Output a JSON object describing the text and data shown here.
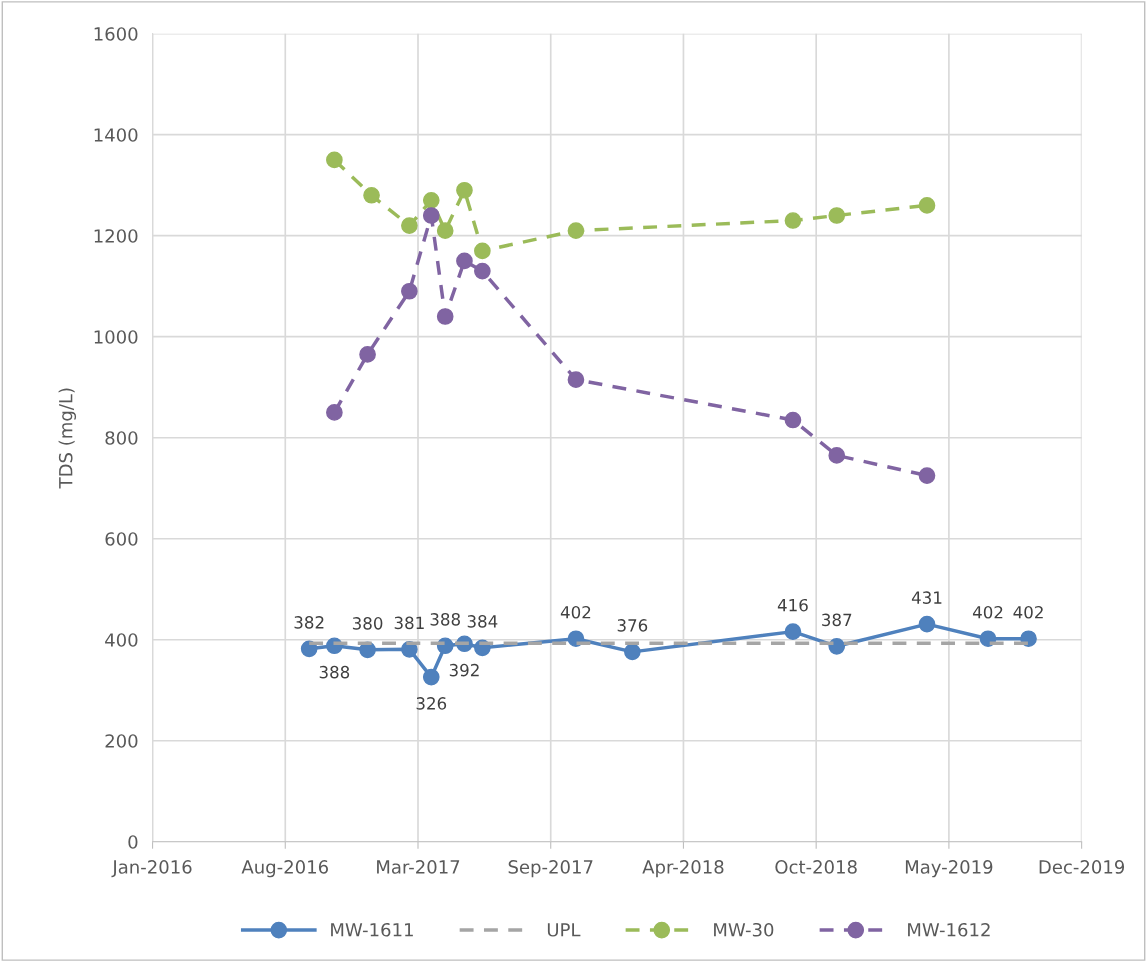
{
  "chart_data": {
    "type": "line",
    "ylabel": "TDS (mg/L)",
    "xlim": [
      "2016-01-31",
      "2019-12-01"
    ],
    "xticks": [
      {
        "value": "2016-01-31",
        "label": "Jan-2016"
      },
      {
        "value": "2016-08-18",
        "label": "Aug-2016"
      },
      {
        "value": "2017-03-06",
        "label": "Mar-2017"
      },
      {
        "value": "2017-09-22",
        "label": "Sep-2017"
      },
      {
        "value": "2018-04-10",
        "label": "Apr-2018"
      },
      {
        "value": "2018-10-27",
        "label": "Oct-2018"
      },
      {
        "value": "2019-05-15",
        "label": "May-2019"
      },
      {
        "value": "2019-12-01",
        "label": "Dec-2019"
      }
    ],
    "ylim": [
      0,
      1600
    ],
    "yticks": [
      0,
      200,
      400,
      600,
      800,
      1000,
      1200,
      1400,
      1600
    ],
    "grid": true,
    "legend": "bottom",
    "series": [
      {
        "name": "MW-1611",
        "color": "#4f81bd",
        "marker": "circle",
        "line_style": "solid",
        "x": [
          "2016-09-23",
          "2016-10-31",
          "2016-12-20",
          "2017-02-21",
          "2017-03-26",
          "2017-04-16",
          "2017-05-15",
          "2017-06-11",
          "2017-10-30",
          "2018-01-23",
          "2018-09-22",
          "2018-11-27",
          "2019-04-12",
          "2019-07-13",
          "2019-09-12"
        ],
        "values": [
          382,
          388,
          380,
          381,
          326,
          388,
          392,
          384,
          402,
          376,
          416,
          387,
          431,
          402,
          402
        ],
        "value_labels": [
          "382",
          "388",
          "380",
          "381",
          "326",
          "388",
          "392",
          "384",
          "402",
          "376",
          "416",
          "387",
          "431",
          "402",
          "402"
        ]
      },
      {
        "name": "UPL",
        "color": "#a5a5a5",
        "marker": "none",
        "line_style": "dashed",
        "x": [
          "2016-09-23",
          "2019-09-12"
        ],
        "values": [
          393,
          393
        ]
      },
      {
        "name": "MW-30",
        "color": "#9bbb59",
        "marker": "circle",
        "line_style": "dashed",
        "x": [
          "2016-10-31",
          "2016-12-26",
          "2017-02-21",
          "2017-03-26",
          "2017-04-16",
          "2017-05-15",
          "2017-06-11",
          "2017-10-30",
          "2018-09-22",
          "2018-11-27",
          "2019-04-12"
        ],
        "values": [
          1350,
          1280,
          1220,
          1270,
          1210,
          1290,
          1170,
          1210,
          1230,
          1240,
          1260
        ]
      },
      {
        "name": "MW-1612",
        "color": "#8064a2",
        "marker": "circle",
        "line_style": "dashed",
        "x": [
          "2016-10-31",
          "2016-12-20",
          "2017-02-21",
          "2017-03-26",
          "2017-04-16",
          "2017-05-15",
          "2017-06-11",
          "2017-10-30",
          "2018-09-22",
          "2018-11-27",
          "2019-04-12"
        ],
        "values": [
          850,
          965,
          1090,
          1240,
          1040,
          1150,
          1130,
          915,
          835,
          765,
          725
        ]
      }
    ]
  }
}
